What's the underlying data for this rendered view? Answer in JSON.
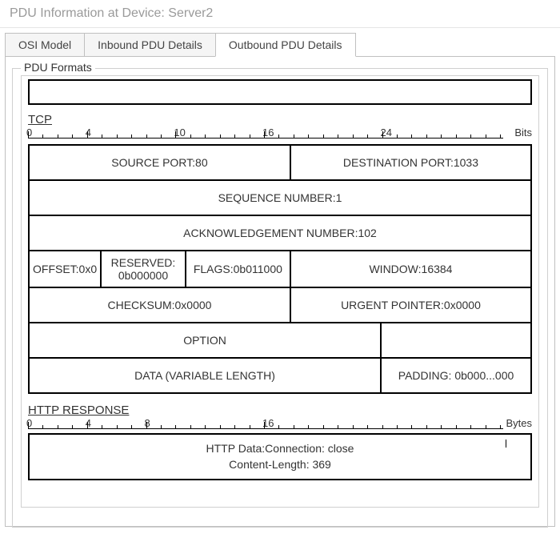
{
  "window": {
    "title": "PDU Information at Device: Server2"
  },
  "tabs": [
    {
      "label": "OSI Model",
      "active": false
    },
    {
      "label": "Inbound PDU Details",
      "active": false
    },
    {
      "label": "Outbound PDU Details",
      "active": true
    }
  ],
  "section_title": "PDU Formats",
  "tcp": {
    "label": "TCP",
    "unit": "Bits",
    "major_ticks": [
      "0",
      "4",
      "10",
      "16",
      "24"
    ],
    "fields": {
      "src_port": "SOURCE PORT:80",
      "dst_port": "DESTINATION PORT:1033",
      "seq": "SEQUENCE NUMBER:1",
      "ack": "ACKNOWLEDGEMENT NUMBER:102",
      "offset": "OFFSET:0x0",
      "reserved": "RESERVED: 0b000000",
      "flags": "FLAGS:0b011000",
      "window": "WINDOW:16384",
      "checksum": "CHECKSUM:0x0000",
      "urgent": "URGENT POINTER:0x0000",
      "option": "OPTION",
      "data": "DATA (VARIABLE LENGTH)",
      "padding": "PADDING: 0b000...000"
    }
  },
  "http": {
    "label": "HTTP RESPONSE",
    "unit": "Bytes",
    "major_ticks": [
      "0",
      "4",
      "8",
      "16"
    ],
    "line1": "HTTP Data:Connection: close",
    "line2": "Content-Length: 369"
  }
}
